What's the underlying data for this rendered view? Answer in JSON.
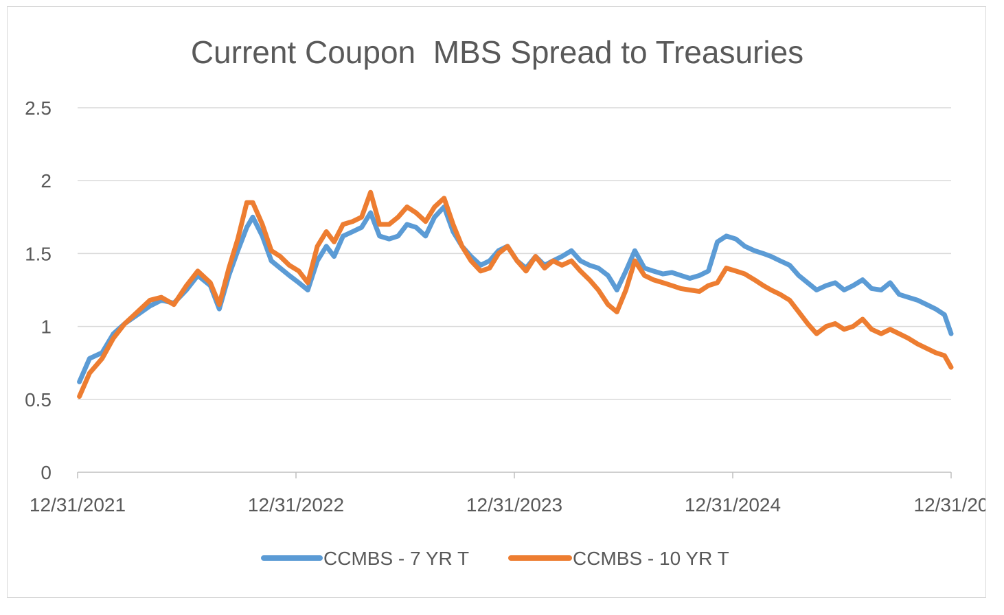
{
  "chart_data": {
    "type": "line",
    "title": "Current Coupon  MBS Spread to Treasuries",
    "xlabel": "",
    "ylabel": "",
    "ylim": [
      0,
      2.5
    ],
    "y_ticks": [
      "0",
      "0.5",
      "1",
      "1.5",
      "2",
      "2.5"
    ],
    "x_ticks": [
      "12/31/2021",
      "12/31/2022",
      "12/31/2023",
      "12/31/2024",
      "12/31/20"
    ],
    "xlim": [
      "2021-12-31",
      "2025-12-31"
    ],
    "grid": true,
    "legend_position": "bottom",
    "x": [
      "2022-01-03",
      "2022-01-20",
      "2022-02-10",
      "2022-03-01",
      "2022-03-20",
      "2022-04-10",
      "2022-05-01",
      "2022-05-20",
      "2022-06-10",
      "2022-07-01",
      "2022-07-20",
      "2022-08-10",
      "2022-08-25",
      "2022-09-10",
      "2022-09-25",
      "2022-10-10",
      "2022-10-20",
      "2022-11-05",
      "2022-11-20",
      "2022-12-05",
      "2022-12-20",
      "2023-01-05",
      "2023-01-20",
      "2023-02-05",
      "2023-02-20",
      "2023-03-05",
      "2023-03-20",
      "2023-04-05",
      "2023-04-20",
      "2023-05-05",
      "2023-05-20",
      "2023-06-05",
      "2023-06-20",
      "2023-07-05",
      "2023-07-20",
      "2023-08-05",
      "2023-08-20",
      "2023-09-05",
      "2023-09-20",
      "2023-10-05",
      "2023-10-20",
      "2023-11-05",
      "2023-11-20",
      "2023-12-05",
      "2023-12-20",
      "2024-01-05",
      "2024-01-20",
      "2024-02-05",
      "2024-02-20",
      "2024-03-05",
      "2024-03-20",
      "2024-04-05",
      "2024-04-20",
      "2024-05-05",
      "2024-05-20",
      "2024-06-05",
      "2024-06-20",
      "2024-07-05",
      "2024-07-20",
      "2024-08-05",
      "2024-08-20",
      "2024-09-05",
      "2024-09-20",
      "2024-10-05",
      "2024-10-20",
      "2024-11-05",
      "2024-11-20",
      "2024-12-05",
      "2024-12-20",
      "2025-01-05",
      "2025-01-20",
      "2025-02-05",
      "2025-02-20",
      "2025-03-05",
      "2025-03-20",
      "2025-04-05",
      "2025-04-20",
      "2025-05-05",
      "2025-05-20",
      "2025-06-05",
      "2025-06-20",
      "2025-07-05",
      "2025-07-20",
      "2025-08-05",
      "2025-08-20",
      "2025-09-05",
      "2025-09-20",
      "2025-10-05",
      "2025-10-20",
      "2025-11-05",
      "2025-11-20",
      "2025-12-05",
      "2025-12-20",
      "2025-12-31"
    ],
    "series": [
      {
        "name": "CCMBS - 7 YR T",
        "color": "#5b9bd5",
        "values": [
          0.62,
          0.78,
          0.82,
          0.95,
          1.02,
          1.08,
          1.14,
          1.18,
          1.16,
          1.25,
          1.35,
          1.28,
          1.12,
          1.35,
          1.52,
          1.68,
          1.75,
          1.62,
          1.45,
          1.4,
          1.35,
          1.3,
          1.25,
          1.45,
          1.55,
          1.48,
          1.62,
          1.65,
          1.68,
          1.78,
          1.62,
          1.6,
          1.62,
          1.7,
          1.68,
          1.62,
          1.75,
          1.82,
          1.65,
          1.55,
          1.48,
          1.42,
          1.45,
          1.52,
          1.55,
          1.45,
          1.4,
          1.48,
          1.42,
          1.45,
          1.48,
          1.52,
          1.45,
          1.42,
          1.4,
          1.35,
          1.25,
          1.38,
          1.52,
          1.4,
          1.38,
          1.36,
          1.37,
          1.35,
          1.33,
          1.35,
          1.38,
          1.58,
          1.62,
          1.6,
          1.55,
          1.52,
          1.5,
          1.48,
          1.45,
          1.42,
          1.35,
          1.3,
          1.25,
          1.28,
          1.3,
          1.25,
          1.28,
          1.32,
          1.26,
          1.25,
          1.3,
          1.22,
          1.2,
          1.18,
          1.15,
          1.12,
          1.08,
          0.95
        ]
      },
      {
        "name": "CCMBS - 10 YR T",
        "color": "#ed7d31",
        "values": [
          0.52,
          0.68,
          0.78,
          0.92,
          1.02,
          1.1,
          1.18,
          1.2,
          1.15,
          1.28,
          1.38,
          1.3,
          1.15,
          1.4,
          1.6,
          1.85,
          1.85,
          1.7,
          1.52,
          1.48,
          1.42,
          1.38,
          1.3,
          1.55,
          1.65,
          1.58,
          1.7,
          1.72,
          1.75,
          1.92,
          1.7,
          1.7,
          1.75,
          1.82,
          1.78,
          1.72,
          1.82,
          1.88,
          1.7,
          1.55,
          1.45,
          1.38,
          1.4,
          1.5,
          1.55,
          1.45,
          1.38,
          1.48,
          1.4,
          1.45,
          1.42,
          1.45,
          1.38,
          1.32,
          1.25,
          1.15,
          1.1,
          1.25,
          1.45,
          1.35,
          1.32,
          1.3,
          1.28,
          1.26,
          1.25,
          1.24,
          1.28,
          1.3,
          1.4,
          1.38,
          1.36,
          1.32,
          1.28,
          1.25,
          1.22,
          1.18,
          1.1,
          1.02,
          0.95,
          1.0,
          1.02,
          0.98,
          1.0,
          1.05,
          0.98,
          0.95,
          0.98,
          0.95,
          0.92,
          0.88,
          0.85,
          0.82,
          0.8,
          0.72
        ]
      }
    ]
  }
}
